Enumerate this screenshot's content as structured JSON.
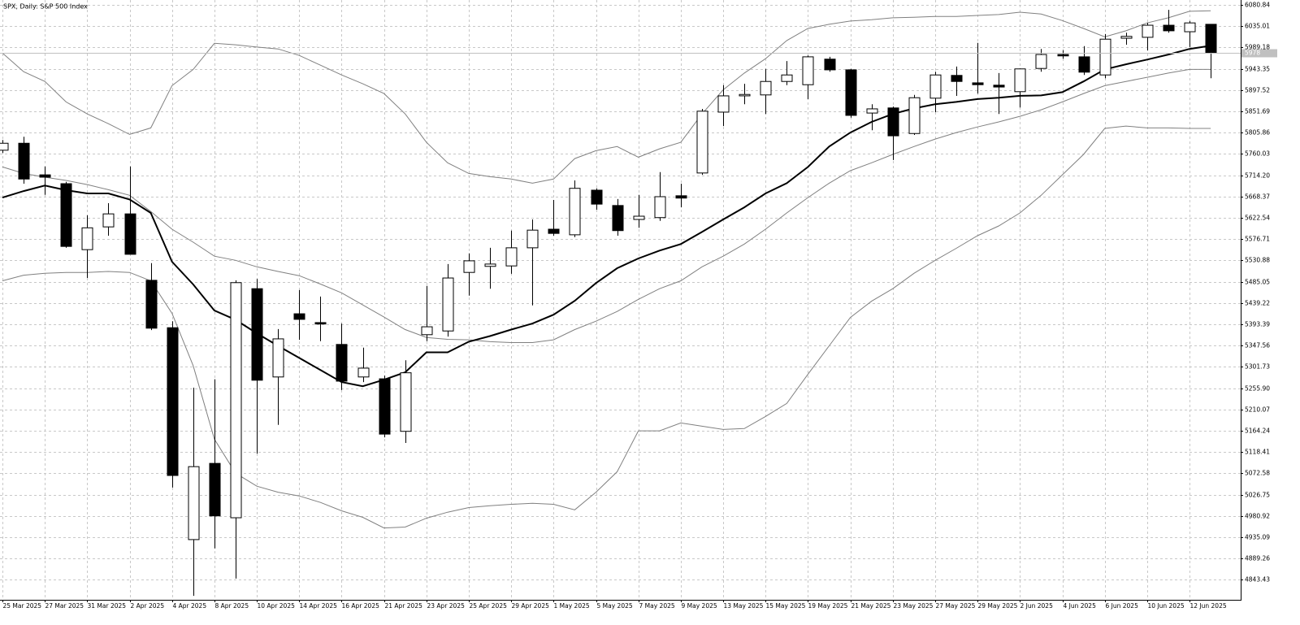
{
  "chart_data": {
    "type": "candlestick",
    "title": "SPX, Daily:  S&P 500 Index",
    "categories": [
      "25 Mar 2025",
      null,
      "27 Mar 2025",
      null,
      "31 Mar 2025",
      null,
      "2 Apr 2025",
      null,
      "4 Apr 2025",
      null,
      "8 Apr 2025",
      null,
      "10 Apr 2025",
      null,
      "14 Apr 2025",
      null,
      "16 Apr 2025",
      null,
      "21 Apr 2025",
      null,
      "23 Apr 2025",
      null,
      "25 Apr 2025",
      null,
      "29 Apr 2025",
      null,
      "1 May 2025",
      null,
      "5 May 2025",
      null,
      "7 May 2025",
      null,
      "9 May 2025",
      null,
      "13 May 2025",
      null,
      "15 May 2025",
      null,
      "19 May 2025",
      null,
      "21 May 2025",
      null,
      "23 May 2025",
      null,
      "27 May 2025",
      null,
      "29 May 2025",
      null,
      "2 Jun 2025",
      null,
      "4 Jun 2025",
      null,
      "6 Jun 2025",
      null,
      "10 Jun 2025",
      null,
      "12 Jun 2025",
      null
    ],
    "open": [
      5768,
      5783,
      5715,
      5696,
      5554,
      5603,
      5631,
      5488,
      5386,
      4930,
      5094,
      4977,
      5470,
      5280,
      5416,
      5397,
      5350,
      5280,
      5276,
      5163,
      5371,
      5379,
      5505,
      5518,
      5519,
      5558,
      5598,
      5586,
      5682,
      5649,
      5619,
      5623,
      5670,
      5719,
      5850,
      5885,
      5887,
      5916,
      5909,
      5964,
      5941,
      5848,
      5859,
      5804,
      5880,
      5929,
      5913,
      5908,
      5894,
      5944,
      5974,
      5969,
      5930,
      6009,
      6011,
      6037,
      6023,
      6039
    ],
    "high": [
      5790,
      5797,
      5733,
      5700,
      5628,
      5654,
      5733,
      5525,
      5400,
      5257,
      5275,
      5488,
      5491,
      5383,
      5467,
      5453,
      5395,
      5343,
      5283,
      5316,
      5476,
      5523,
      5546,
      5558,
      5595,
      5619,
      5661,
      5703,
      5686,
      5663,
      5672,
      5721,
      5696,
      5857,
      5908,
      5911,
      5943,
      5960,
      5972,
      5969,
      5943,
      5867,
      5862,
      5887,
      5937,
      5948,
      5999,
      5934,
      5944,
      5986,
      5983,
      5992,
      6018,
      6021,
      6042,
      6070,
      6046,
      6039
    ],
    "low": [
      5762,
      5696,
      5672,
      5558,
      5493,
      5584,
      5544,
      5381,
      5042,
      4809,
      4911,
      4846,
      5115,
      5177,
      5360,
      5357,
      5252,
      5269,
      5150,
      5138,
      5357,
      5367,
      5455,
      5470,
      5502,
      5434,
      5584,
      5581,
      5640,
      5584,
      5601,
      5616,
      5645,
      5715,
      5820,
      5867,
      5846,
      5908,
      5878,
      5937,
      5838,
      5811,
      5747,
      5801,
      5850,
      5885,
      5890,
      5846,
      5860,
      5937,
      5965,
      5930,
      5923,
      5995,
      5983,
      6021,
      5990,
      5923
    ],
    "close": [
      5783,
      5706,
      5710,
      5561,
      5601,
      5631,
      5544,
      5385,
      5068,
      5087,
      4981,
      5483,
      5273,
      5362,
      5404,
      5394,
      5271,
      5299,
      5157,
      5289,
      5388,
      5493,
      5530,
      5523,
      5558,
      5596,
      5589,
      5686,
      5652,
      5595,
      5626,
      5668,
      5665,
      5852,
      5885,
      5888,
      5916,
      5930,
      5969,
      5941,
      5843,
      5857,
      5799,
      5881,
      5930,
      5916,
      5909,
      5904,
      5943,
      5974,
      5971,
      5936,
      6007,
      6013,
      6037,
      6025,
      6042,
      5978
    ],
    "up_color": "#ffffff",
    "down_color": "#000000",
    "series": [
      {
        "color": "#808080",
        "width": 1,
        "values": [
          5977,
          5937,
          5916,
          5872,
          5846,
          5825,
          5802,
          5816,
          5907,
          5942,
          5998,
          5995,
          5990,
          5986,
          5972,
          5951,
          5930,
          5911,
          5890,
          5846,
          5785,
          5741,
          5718,
          5711,
          5706,
          5697,
          5706,
          5750,
          5767,
          5776,
          5753,
          5771,
          5785,
          5846,
          5898,
          5934,
          5965,
          6004,
          6030,
          6039,
          6046,
          6049,
          6053,
          6054,
          6056,
          6056,
          6058,
          6060,
          6065,
          6061,
          6047,
          6030,
          6012,
          6025,
          6042,
          6053,
          6067,
          6068
        ]
      },
      {
        "color": "#808080",
        "width": 1,
        "values": [
          5732,
          5718,
          5710,
          5703,
          5694,
          5683,
          5671,
          5636,
          5598,
          5570,
          5540,
          5531,
          5517,
          5507,
          5498,
          5480,
          5461,
          5435,
          5409,
          5382,
          5365,
          5361,
          5360,
          5356,
          5354,
          5354,
          5360,
          5382,
          5400,
          5421,
          5447,
          5470,
          5487,
          5517,
          5540,
          5566,
          5598,
          5633,
          5666,
          5697,
          5724,
          5741,
          5759,
          5776,
          5792,
          5806,
          5818,
          5829,
          5841,
          5855,
          5872,
          5890,
          5907,
          5916,
          5925,
          5934,
          5942,
          5942
        ]
      },
      {
        "color": "#808080",
        "width": 1,
        "values": [
          5487,
          5499,
          5503,
          5505,
          5505,
          5507,
          5505,
          5487,
          5417,
          5304,
          5146,
          5073,
          5045,
          5032,
          5024,
          5010,
          4992,
          4978,
          4955,
          4957,
          4976,
          4989,
          4999,
          5003,
          5006,
          5008,
          5006,
          4994,
          5032,
          5076,
          5164,
          5164,
          5181,
          5174,
          5167,
          5169,
          5195,
          5223,
          5286,
          5347,
          5408,
          5443,
          5470,
          5503,
          5531,
          5557,
          5584,
          5605,
          5633,
          5671,
          5715,
          5759,
          5815,
          5820,
          5816,
          5816,
          5815,
          5815
        ]
      },
      {
        "color": "#000000",
        "width": 2,
        "values": [
          5666,
          5680,
          5692,
          5682,
          5675,
          5675,
          5662,
          5633,
          5528,
          5479,
          5423,
          5403,
          5374,
          5347,
          5321,
          5295,
          5269,
          5260,
          5274,
          5290,
          5333,
          5333,
          5356,
          5368,
          5382,
          5395,
          5414,
          5444,
          5482,
          5514,
          5535,
          5552,
          5566,
          5592,
          5619,
          5645,
          5675,
          5697,
          5732,
          5776,
          5806,
          5829,
          5846,
          5858,
          5867,
          5872,
          5878,
          5881,
          5885,
          5886,
          5893,
          5916,
          5942,
          5953,
          5963,
          5974,
          5986,
          5993
        ]
      }
    ],
    "ylim": [
      4800.4,
      6091.3
    ],
    "yticks": [
      6080.84,
      6035.01,
      5989.18,
      5943.35,
      5897.52,
      5851.69,
      5805.86,
      5760.03,
      {
        "value": 5714.2,
        "label": "5714.20"
      },
      5668.37,
      5622.54,
      5576.71,
      5530.88,
      5485.05,
      5439.22,
      5393.39,
      5347.56,
      5301.73,
      {
        "value": 5255.9,
        "label": "5255.90"
      },
      5210.07,
      5164.24,
      5118.41,
      5072.58,
      5026.75,
      4980.92,
      4935.09,
      4889.26,
      4843.43
    ],
    "grid": true
  }
}
